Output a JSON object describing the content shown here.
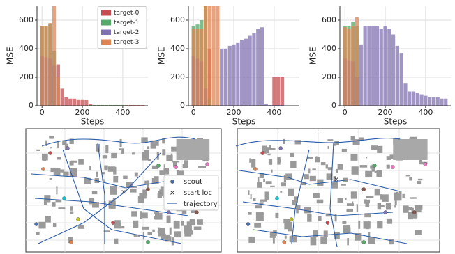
{
  "chart_data": [
    {
      "type": "bar",
      "ylabel": "MSE",
      "xlabel": "Steps",
      "x": [
        0,
        20,
        40,
        60,
        80,
        100,
        120,
        140,
        160,
        180,
        200,
        220,
        240,
        260,
        280,
        300,
        320,
        340,
        360,
        380,
        400,
        420,
        440,
        460,
        480,
        500
      ],
      "series": [
        {
          "name": "target-0",
          "color": "#c44e52",
          "values": [
            0,
            0,
            0,
            0,
            290,
            120,
            60,
            50,
            50,
            45,
            45,
            40,
            10,
            5,
            5,
            5,
            5,
            5,
            5,
            5,
            5,
            5,
            5,
            5,
            5,
            5
          ]
        },
        {
          "name": "target-1",
          "color": "#55a868",
          "values": [
            560,
            560,
            570,
            380,
            0,
            0,
            0,
            0,
            0,
            0,
            0,
            0,
            5,
            5,
            5,
            5,
            5,
            5,
            5,
            5,
            5,
            0,
            0,
            0,
            0,
            0
          ]
        },
        {
          "name": "target-2",
          "color": "#8172b2",
          "values": [
            350,
            340,
            330,
            280,
            0,
            0,
            0,
            0,
            0,
            0,
            0,
            0,
            0,
            0,
            0,
            0,
            0,
            0,
            0,
            0,
            0,
            0,
            0,
            0,
            0,
            0
          ]
        },
        {
          "name": "target-3",
          "color": "#dd8452",
          "values": [
            560,
            560,
            580,
            700,
            200,
            0,
            0,
            0,
            0,
            0,
            0,
            0,
            0,
            0,
            0,
            0,
            0,
            0,
            0,
            0,
            0,
            0,
            0,
            0,
            0,
            0
          ]
        }
      ],
      "xlim": [
        -25,
        525
      ],
      "ylim": [
        0,
        700
      ],
      "xticks": [
        0,
        200,
        400
      ],
      "yticks": [
        0,
        200,
        400,
        600
      ],
      "grid": true,
      "legend": "upper right"
    },
    {
      "type": "bar",
      "ylabel": "MSE",
      "xlabel": "Steps",
      "x": [
        0,
        20,
        40,
        60,
        80,
        100,
        120,
        140,
        160,
        180,
        200,
        220,
        240,
        260,
        280,
        300,
        320,
        340,
        360,
        380,
        400,
        420,
        440,
        460,
        480,
        500
      ],
      "series": [
        {
          "color": "#c44e52",
          "values": [
            0,
            0,
            0,
            0,
            400,
            0,
            0,
            0,
            0,
            0,
            0,
            0,
            0,
            0,
            0,
            0,
            0,
            0,
            0,
            0,
            200,
            200,
            200,
            0,
            0,
            0
          ]
        },
        {
          "color": "#55a868",
          "values": [
            560,
            570,
            600,
            700,
            50,
            0,
            0,
            0,
            0,
            0,
            0,
            0,
            0,
            0,
            0,
            0,
            0,
            0,
            0,
            0,
            0,
            0,
            0,
            0,
            0,
            0
          ]
        },
        {
          "color": "#8172b2",
          "values": [
            350,
            330,
            310,
            120,
            0,
            0,
            0,
            400,
            400,
            420,
            430,
            440,
            460,
            470,
            490,
            510,
            540,
            550,
            10,
            5,
            5,
            5,
            5,
            0,
            0,
            0
          ]
        },
        {
          "color": "#dd8452",
          "values": [
            540,
            540,
            540,
            700,
            700,
            700,
            700,
            0,
            0,
            0,
            0,
            0,
            0,
            0,
            0,
            0,
            0,
            0,
            0,
            0,
            0,
            0,
            0,
            0,
            0,
            0
          ]
        }
      ],
      "xlim": [
        -25,
        525
      ],
      "ylim": [
        0,
        700
      ],
      "xticks": [
        0,
        200,
        400
      ],
      "yticks": [
        0,
        200,
        400,
        600
      ],
      "grid": true
    },
    {
      "type": "bar",
      "ylabel": "MSE",
      "xlabel": "Steps",
      "x": [
        0,
        20,
        40,
        60,
        80,
        100,
        120,
        140,
        160,
        180,
        200,
        220,
        240,
        260,
        280,
        300,
        320,
        340,
        360,
        380,
        400,
        420,
        440,
        460,
        480,
        500
      ],
      "series": [
        {
          "color": "#c44e52",
          "values": [
            0,
            0,
            0,
            0,
            0,
            0,
            0,
            0,
            0,
            0,
            0,
            0,
            0,
            0,
            0,
            0,
            0,
            0,
            0,
            0,
            0,
            0,
            0,
            0,
            0,
            0
          ]
        },
        {
          "color": "#55a868",
          "values": [
            560,
            560,
            590,
            560,
            0,
            0,
            0,
            0,
            0,
            0,
            0,
            0,
            0,
            0,
            0,
            0,
            0,
            0,
            0,
            0,
            0,
            0,
            0,
            0,
            0,
            0
          ]
        },
        {
          "color": "#8172b2",
          "values": [
            330,
            320,
            310,
            200,
            430,
            560,
            560,
            560,
            560,
            540,
            560,
            540,
            500,
            420,
            370,
            160,
            100,
            100,
            90,
            80,
            70,
            60,
            60,
            60,
            50,
            50
          ]
        },
        {
          "color": "#dd8452",
          "values": [
            550,
            540,
            560,
            620,
            0,
            0,
            0,
            0,
            0,
            0,
            0,
            0,
            0,
            0,
            0,
            0,
            0,
            0,
            0,
            0,
            0,
            0,
            0,
            0,
            0,
            0
          ]
        }
      ],
      "xlim": [
        -25,
        525
      ],
      "ylim": [
        0,
        700
      ],
      "xticks": [
        0,
        200,
        400
      ],
      "yticks": [
        0,
        200,
        400,
        600
      ],
      "grid": true
    }
  ],
  "maps": {
    "legend": [
      "scout",
      "start loc",
      "trajectory"
    ]
  }
}
